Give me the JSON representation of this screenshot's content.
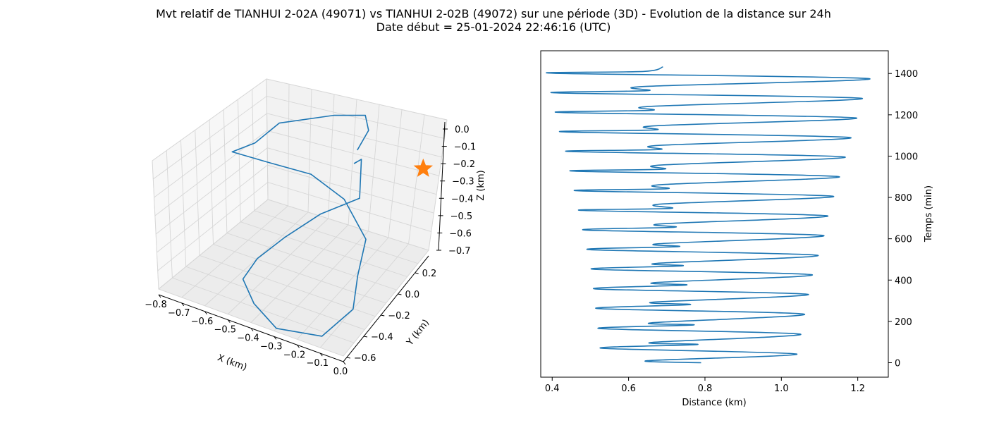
{
  "figure": {
    "title_line1": "Mvt relatif de TIANHUI 2-02A (49071) vs TIANHUI 2-02B (49072) sur une période (3D) - Evolution de la distance sur 24h",
    "title_line2": "Date début = 25-01-2024 22:46:16 (UTC)"
  },
  "colors": {
    "trajectory": "#1f77b4",
    "star": "#ff7f0e"
  },
  "chart_data": [
    {
      "type": "line3d",
      "xlabel": "X (km)",
      "ylabel": "Y (km)",
      "zlabel": "Z (km)",
      "xlim": [
        -0.8,
        0.0
      ],
      "ylim": [
        -0.6,
        0.2
      ],
      "zlim": [
        -0.7,
        0.0
      ],
      "xticks": [
        "−0.8",
        "−0.7",
        "−0.6",
        "−0.5",
        "−0.4",
        "−0.3",
        "−0.2",
        "−0.1",
        "0.0"
      ],
      "yticks": [
        "−0.6",
        "−0.4",
        "−0.2",
        "0.0",
        "0.2"
      ],
      "zticks": [
        "0.0",
        "−0.1",
        "−0.2",
        "−0.3",
        "−0.4",
        "−0.5",
        "−0.6",
        "−0.7"
      ],
      "grid": true,
      "series": [
        {
          "x": [
            -0.28,
            -0.22,
            -0.18,
            -0.32,
            -0.42,
            -0.5,
            -0.52,
            -0.44,
            -0.3,
            -0.1,
            -0.02,
            -0.05,
            -0.08,
            -0.26,
            -0.4,
            -0.52,
            -0.6,
            -0.6,
            -0.58,
            -0.4,
            -0.3,
            -0.27,
            -0.28
          ],
          "y": [
            0.0,
            -0.05,
            -0.12,
            -0.18,
            -0.28,
            -0.36,
            -0.44,
            -0.5,
            -0.58,
            -0.58,
            -0.46,
            -0.36,
            -0.24,
            -0.1,
            -0.12,
            -0.24,
            -0.36,
            -0.2,
            -0.06,
            0.04,
            0.1,
            0.08,
            0.02
          ],
          "z": [
            -0.18,
            -0.1,
            -0.25,
            -0.35,
            -0.45,
            -0.55,
            -0.62,
            -0.68,
            -0.7,
            -0.65,
            -0.55,
            -0.45,
            -0.35,
            -0.3,
            -0.2,
            -0.1,
            0.0,
            -0.05,
            -0.02,
            0.02,
            0.01,
            -0.05,
            -0.12
          ]
        }
      ],
      "markers": [
        {
          "shape": "star",
          "x": 0.0,
          "y": 0.05,
          "z": -0.15
        }
      ]
    },
    {
      "type": "line",
      "xlabel": "Distance (km)",
      "ylabel": "Temps (min)",
      "xlim": [
        0.37,
        1.28
      ],
      "ylim": [
        -70,
        1510
      ],
      "xticks": [
        0.4,
        0.6,
        0.8,
        1.0,
        1.2
      ],
      "yticks": [
        0,
        200,
        400,
        600,
        800,
        1000,
        1200,
        1400
      ],
      "yaxis_position": "right",
      "series": [
        {
          "distance": [
            0.79,
            0.65,
            1.04,
            0.53,
            0.78,
            0.66,
            1.05,
            0.525,
            0.77,
            0.66,
            1.06,
            0.52,
            0.76,
            0.665,
            1.07,
            0.515,
            0.75,
            0.67,
            1.08,
            0.51,
            0.74,
            0.675,
            1.095,
            0.5,
            0.73,
            0.68,
            1.11,
            0.49,
            0.72,
            0.685,
            1.12,
            0.48,
            0.71,
            0.685,
            1.135,
            0.47,
            0.7,
            0.685,
            1.15,
            0.46,
            0.69,
            0.685,
            1.165,
            0.45,
            0.68,
            0.68,
            1.18,
            0.435,
            0.67,
            0.67,
            1.195,
            0.425,
            0.66,
            0.66,
            1.21,
            0.415,
            0.65,
            0.64,
            1.23,
            0.405,
            0.64,
            0.69
          ],
          "time": [
            0,
            10,
            42,
            70,
            88,
            98,
            138,
            165,
            183,
            193,
            235,
            262,
            281,
            293,
            331,
            357,
            376,
            388,
            426,
            452,
            469,
            481,
            520,
            547,
            562,
            576,
            616,
            642,
            656,
            672,
            711,
            737,
            747,
            768,
            806,
            832,
            842,
            862,
            901,
            927,
            937,
            957,
            996,
            1022,
            1032,
            1052,
            1090,
            1117,
            1127,
            1147,
            1185,
            1211,
            1222,
            1241,
            1280,
            1306,
            1317,
            1337,
            1375,
            1401,
            1410,
            1432
          ]
        }
      ]
    }
  ]
}
